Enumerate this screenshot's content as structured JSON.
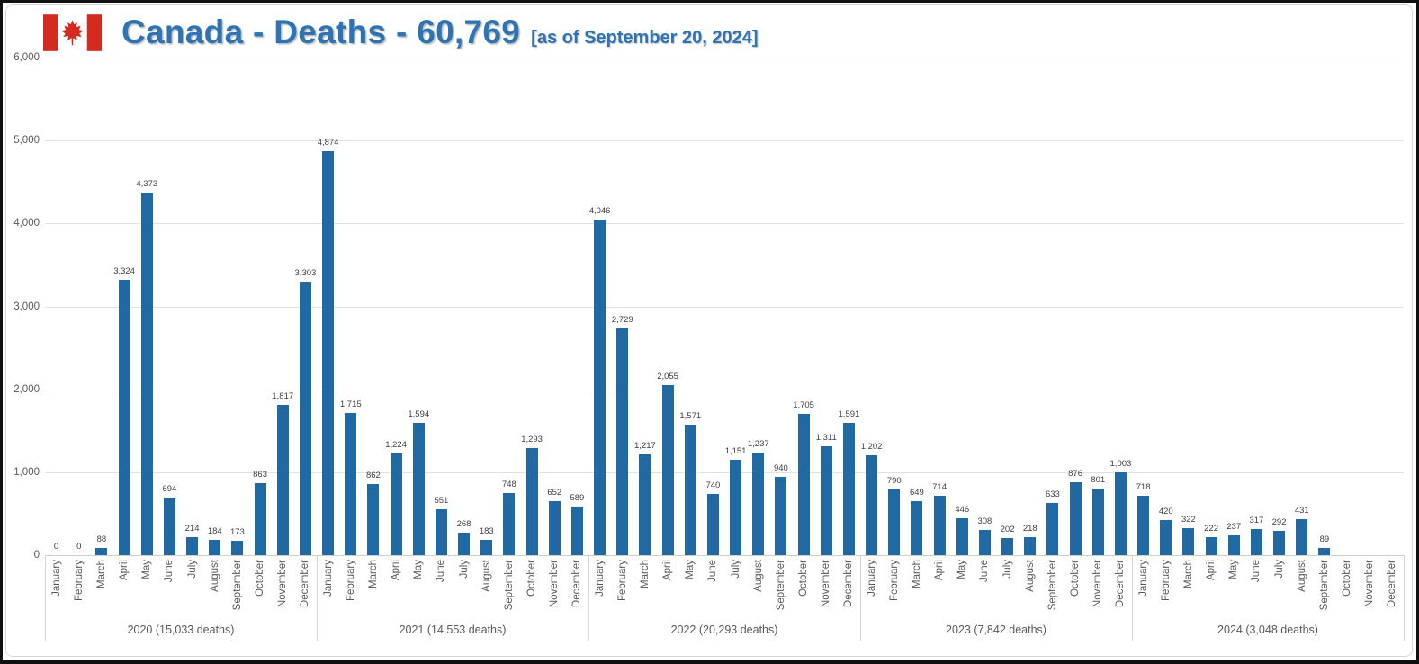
{
  "header": {
    "title": "Canada - Deaths - 60,769",
    "subtitle": "[as of September 20, 2024]",
    "flag_icon": "canada-flag-icon",
    "title_color": "#2e74b5"
  },
  "chart_data": {
    "type": "bar",
    "title": "Canada - Deaths - 60,769 [as of September 20, 2024]",
    "xlabel": "",
    "ylabel": "",
    "ylim": [
      0,
      6000
    ],
    "grid": true,
    "legend": "none",
    "bar_color": "#2069a3",
    "y_tick_values": [
      0,
      1000,
      2000,
      3000,
      4000,
      5000,
      6000
    ],
    "y_tick_labels": [
      "0",
      "1,000",
      "2,000",
      "3,000",
      "4,000",
      "5,000",
      "6,000"
    ],
    "months": [
      "January",
      "February",
      "March",
      "April",
      "May",
      "June",
      "July",
      "August",
      "September",
      "October",
      "November",
      "December"
    ],
    "years": [
      {
        "year": "2020",
        "caption": "2020 (15,033 deaths)",
        "total": 15033,
        "values": [
          0,
          0,
          88,
          3324,
          4373,
          694,
          214,
          184,
          173,
          863,
          1817,
          3303
        ]
      },
      {
        "year": "2021",
        "caption": "2021 (14,553 deaths)",
        "total": 14553,
        "values": [
          4874,
          1715,
          862,
          1224,
          1594,
          551,
          268,
          183,
          748,
          1293,
          652,
          589
        ]
      },
      {
        "year": "2022",
        "caption": "2022 (20,293 deaths)",
        "total": 20293,
        "values": [
          4046,
          2729,
          1217,
          2055,
          1571,
          740,
          1151,
          1237,
          940,
          1705,
          1311,
          1591
        ]
      },
      {
        "year": "2023",
        "caption": "2023 (7,842 deaths)",
        "total": 7842,
        "values": [
          1202,
          790,
          649,
          714,
          446,
          308,
          202,
          218,
          633,
          876,
          801,
          1003
        ]
      },
      {
        "year": "2024",
        "caption": "2024 (3,048 deaths)",
        "total": 3048,
        "values": [
          718,
          420,
          322,
          222,
          237,
          317,
          292,
          431,
          89,
          null,
          null,
          null
        ]
      }
    ]
  }
}
